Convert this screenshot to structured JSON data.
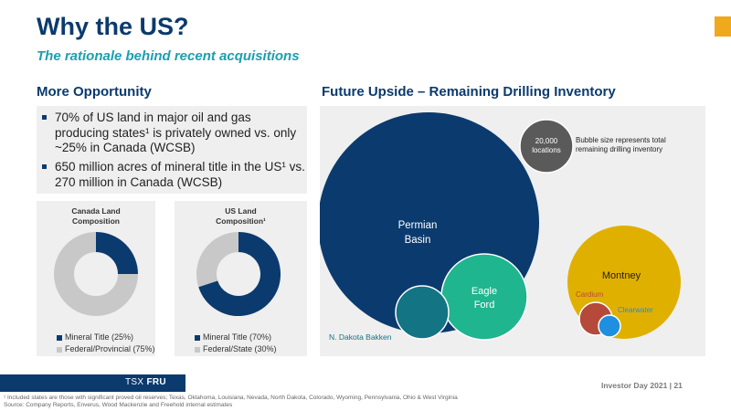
{
  "header": {
    "title": "Why the US?",
    "subtitle": "The rationale behind recent acquisitions"
  },
  "left": {
    "heading": "More Opportunity",
    "bullets": [
      "70% of US land in major oil and gas producing states¹ is privately owned vs. only ~25% in Canada (WCSB)",
      "650 million acres of mineral title in the US¹ vs. 270 million in Canada (WCSB)"
    ]
  },
  "charts": {
    "canada": {
      "title_line1": "Canada Land",
      "title_line2": "Composition",
      "legend": [
        "Mineral Title (25%)",
        "Federal/Provincial (75%)"
      ]
    },
    "us": {
      "title_line1": "US Land",
      "title_line2": "Composition¹",
      "legend": [
        "Mineral Title (70%)",
        "Federal/State (30%)"
      ]
    }
  },
  "right": {
    "heading": "Future Upside – Remaining Drilling Inventory",
    "legend_bubble_line1": "20,000",
    "legend_bubble_line2": "locations",
    "legend_note_line1": "Bubble size represents total",
    "legend_note_line2": "remaining drilling inventory",
    "bubbles": {
      "permian_line1": "Permian",
      "permian_line2": "Basin",
      "eagle_line1": "Eagle",
      "eagle_line2": "Ford",
      "bakken": "N. Dakota Bakken",
      "montney": "Montney",
      "cardium": "Cardium",
      "clearwater": "Clearwater"
    }
  },
  "footer": {
    "ticker_prefix": "TSX",
    "ticker": "FRU",
    "page_info": "Investor Day 2021 | 21",
    "footnote": "¹ Included states are those with significant proved oil reserves; Texas, Oklahoma, Louisiana, Nevada, North Dakota, Colorado, Wyoming, Pennsylvania, Ohio & West Virginia",
    "source": "Source: Company Reports, Enverus, Wood Mackenzie and Freehold internal estimates"
  },
  "colors": {
    "navy": "#0b3a6e",
    "teal_text": "#1a9fb0",
    "gray": "#c8c8c8",
    "gold": "#f0a81c",
    "permian": "#0b3a6e",
    "eagle_ford": "#1fb58f",
    "bakken": "#137484",
    "montney": "#e0b000",
    "cardium": "#b54a3a",
    "clearwater": "#1f8fe0",
    "legend_bubble": "#5a5a5a"
  },
  "chart_data": [
    {
      "type": "pie",
      "title": "Canada Land Composition",
      "labels": [
        "Mineral Title",
        "Federal/Provincial"
      ],
      "values": [
        25,
        75
      ]
    },
    {
      "type": "pie",
      "title": "US Land Composition¹",
      "labels": [
        "Mineral Title",
        "Federal/State"
      ],
      "values": [
        70,
        30
      ]
    }
  ]
}
